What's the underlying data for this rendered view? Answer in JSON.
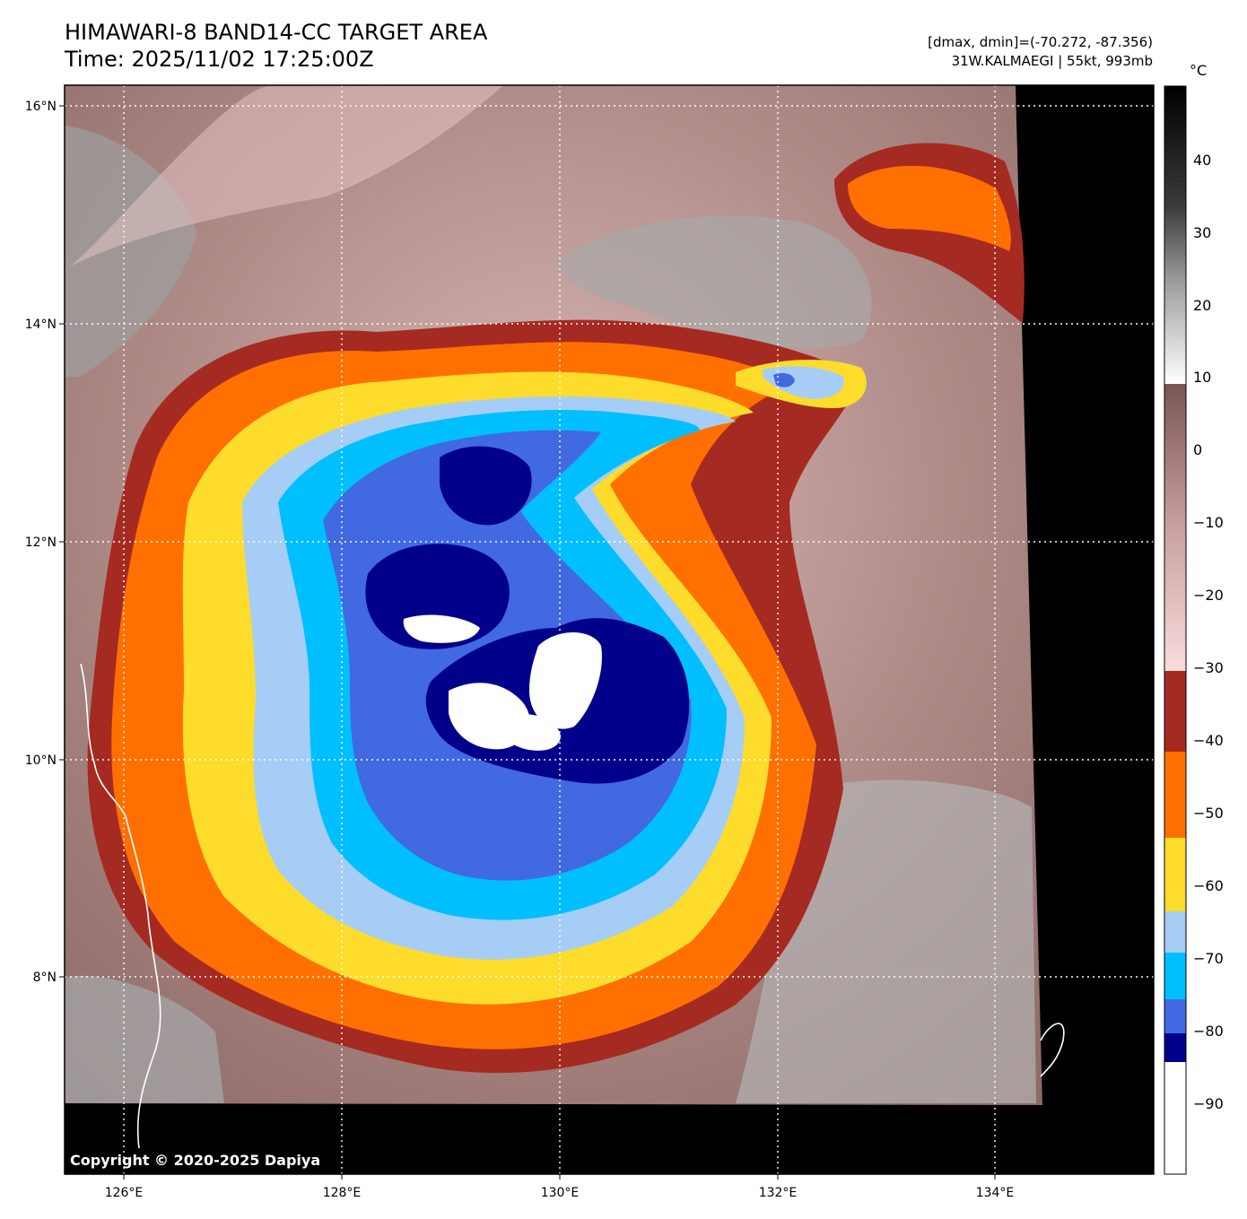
{
  "header": {
    "title_line1": "HIMAWARI-8 BAND14-CC TARGET AREA",
    "title_line2": "Time: 2025/11/02 17:25:00Z",
    "meta_line1": "[dmax, dmin]=(-70.272, -87.356)",
    "meta_line2": "31W.KALMAEGI | 55kt, 993mb"
  },
  "map": {
    "lon_labels": [
      "126°E",
      "128°E",
      "130°E",
      "132°E",
      "134°E"
    ],
    "lat_labels": [
      "16°N",
      "14°N",
      "12°N",
      "10°N",
      "8°N"
    ]
  },
  "colorbar": {
    "unit": "°C",
    "tick_labels": [
      "40",
      "30",
      "20",
      "10",
      "0",
      "−10",
      "−20",
      "−30",
      "−40",
      "−50",
      "−60",
      "−70",
      "−80",
      "−90"
    ],
    "bands": [
      {
        "color": "#ffffff",
        "from": -100,
        "to": -85
      },
      {
        "color": "#00008b",
        "from": -85,
        "to": -81
      },
      {
        "color": "#4169e1",
        "from": -81,
        "to": -77
      },
      {
        "color": "#00bfff",
        "from": -77,
        "to": -71
      },
      {
        "color": "#a6cdf6",
        "from": -71,
        "to": -63
      },
      {
        "color": "#fddc2b",
        "from": -63,
        "to": -53
      },
      {
        "color": "#ff7000",
        "from": -53,
        "to": -41
      },
      {
        "color": "#a52a22",
        "from": -41,
        "to": -30
      }
    ],
    "gradient_warm": [
      "#f8dcdc",
      "#e8c4c4",
      "#c9a0a0",
      "#a57a78",
      "#7a5552"
    ],
    "gradient_gray": [
      "#ffffff",
      "#c8c8c8",
      "#8a8a8a",
      "#4a4a4a",
      "#000000"
    ]
  },
  "copyright": "Copyright © 2020-2025 Dapiya"
}
